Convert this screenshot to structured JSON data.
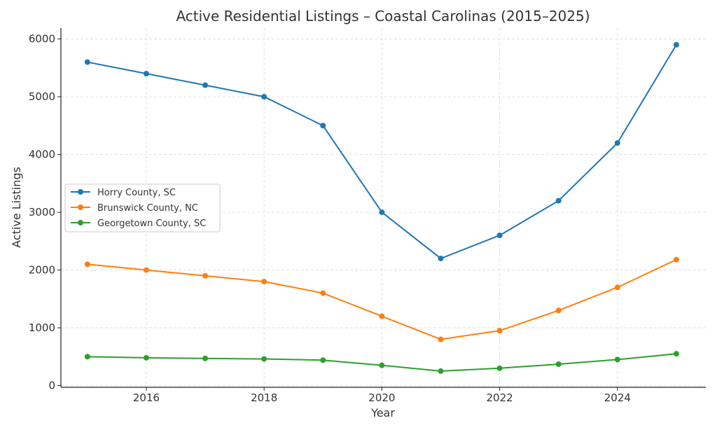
{
  "chart_data": {
    "type": "line",
    "title": "Active Residential Listings – Coastal Carolinas (2015–2025)",
    "xlabel": "Year",
    "ylabel": "Active Listings",
    "x": [
      2015,
      2016,
      2017,
      2018,
      2019,
      2020,
      2021,
      2022,
      2023,
      2024,
      2025
    ],
    "xlim": [
      2014.55,
      2025.5
    ],
    "ylim": [
      -30,
      6190
    ],
    "xticks": [
      2016,
      2018,
      2020,
      2022,
      2024
    ],
    "yticks": [
      0,
      1000,
      2000,
      3000,
      4000,
      5000,
      6000
    ],
    "grid": true,
    "legend_position": "center-left",
    "series": [
      {
        "name": "Horry County, SC",
        "color": "#1f77b4",
        "values": [
          5600,
          5400,
          5200,
          5000,
          4500,
          3000,
          2200,
          2600,
          3200,
          4200,
          5900
        ]
      },
      {
        "name": "Brunswick County, NC",
        "color": "#ff7f0e",
        "values": [
          2100,
          2000,
          1900,
          1800,
          1600,
          1200,
          800,
          950,
          1300,
          1700,
          2180
        ]
      },
      {
        "name": "Georgetown County, SC",
        "color": "#2ca02c",
        "values": [
          500,
          480,
          470,
          460,
          440,
          350,
          250,
          300,
          370,
          450,
          550
        ]
      }
    ]
  }
}
